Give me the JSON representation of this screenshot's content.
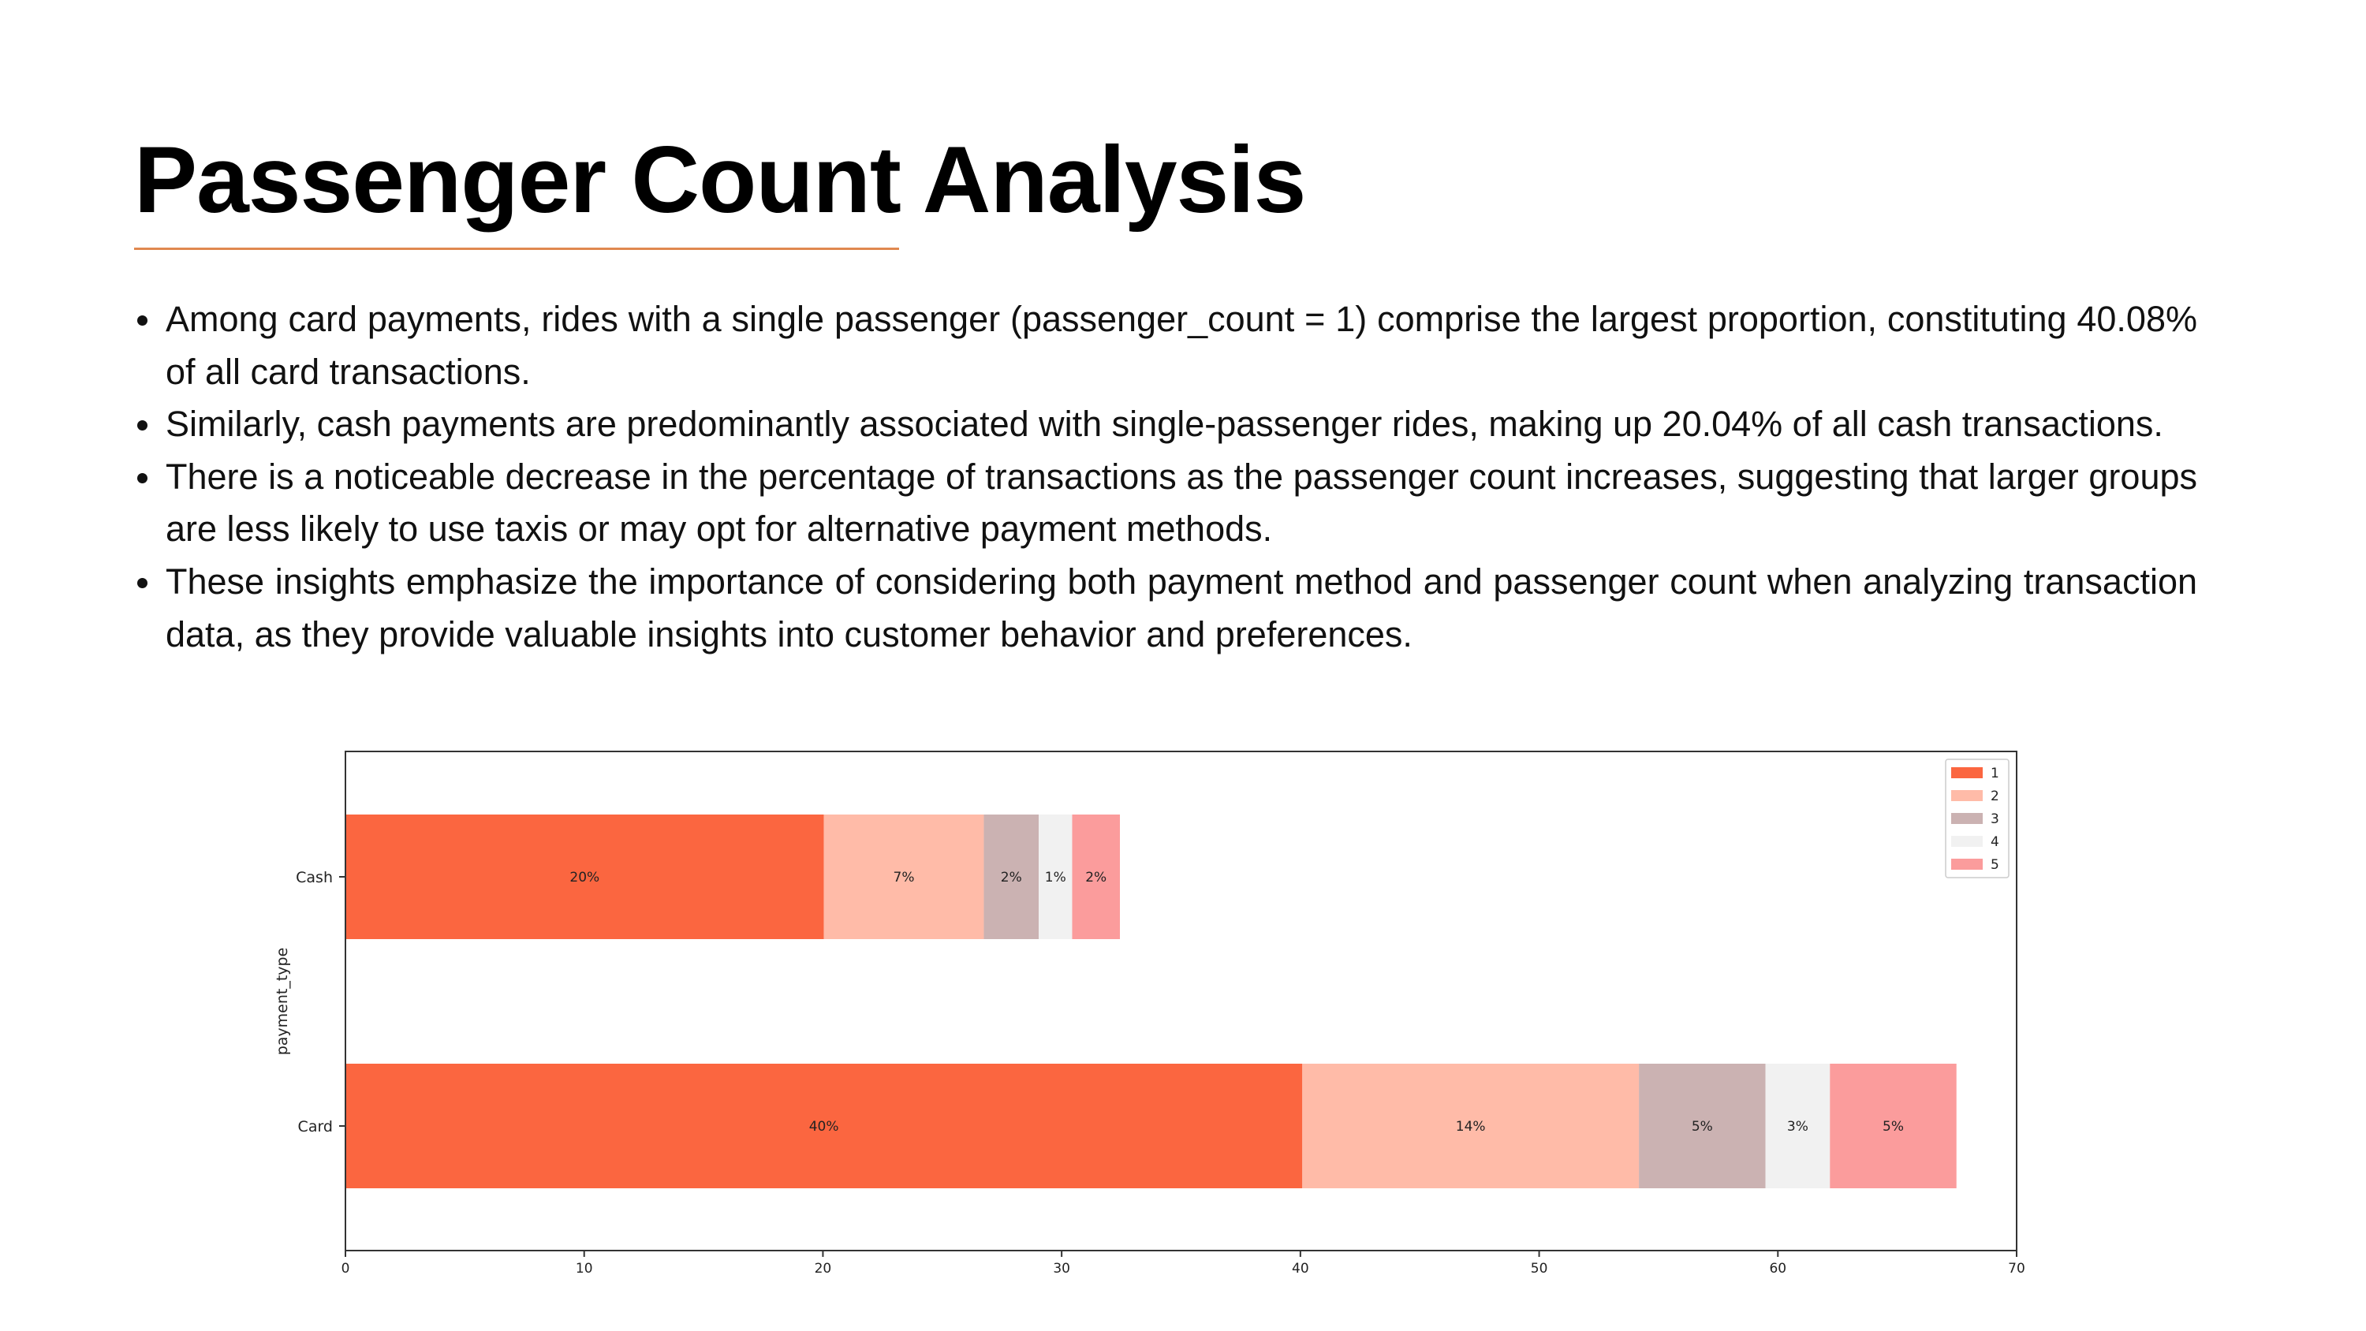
{
  "slide": {
    "title": "Passenger Count Analysis",
    "accent_color": "#e0884f",
    "bullets": [
      "Among card payments, rides with a single passenger (passenger_count = 1) comprise the largest proportion, constituting 40.08% of all card transactions.",
      "Similarly, cash payments are predominantly associated with single-passenger rides, making up 20.04% of all cash transactions.",
      "There is a noticeable decrease in the percentage of transactions as the passenger count increases, suggesting that larger groups are less likely to use taxis or may opt for alternative payment methods.",
      "These insights emphasize the importance of considering both payment method and passenger count when analyzing transaction data, as they provide valuable insights into customer behavior and preferences."
    ]
  },
  "chart_data": {
    "type": "bar",
    "orientation": "horizontal",
    "stacked": true,
    "categories": [
      "Cash",
      "Card"
    ],
    "ylabel": "payment_type",
    "xlabel": "",
    "xlim": [
      0,
      70
    ],
    "xticks": [
      0,
      10,
      20,
      30,
      40,
      50,
      60,
      70
    ],
    "grid": false,
    "legend_position": "top-right",
    "series": [
      {
        "name": "1",
        "color": "#fb6640",
        "values": [
          20.04,
          40.08
        ],
        "labels": [
          "20%",
          "40%"
        ]
      },
      {
        "name": "2",
        "color": "#ffbba8",
        "values": [
          6.7,
          14.1
        ],
        "labels": [
          "7%",
          "14%"
        ]
      },
      {
        "name": "3",
        "color": "#cbb2b2",
        "values": [
          2.3,
          5.3
        ],
        "labels": [
          "2%",
          "5%"
        ]
      },
      {
        "name": "4",
        "color": "#f1f1f1",
        "values": [
          1.4,
          2.7
        ],
        "labels": [
          "1%",
          "3%"
        ]
      },
      {
        "name": "5",
        "color": "#fb9c9c",
        "values": [
          2.0,
          5.3
        ],
        "labels": [
          "2%",
          "5%"
        ]
      }
    ]
  }
}
